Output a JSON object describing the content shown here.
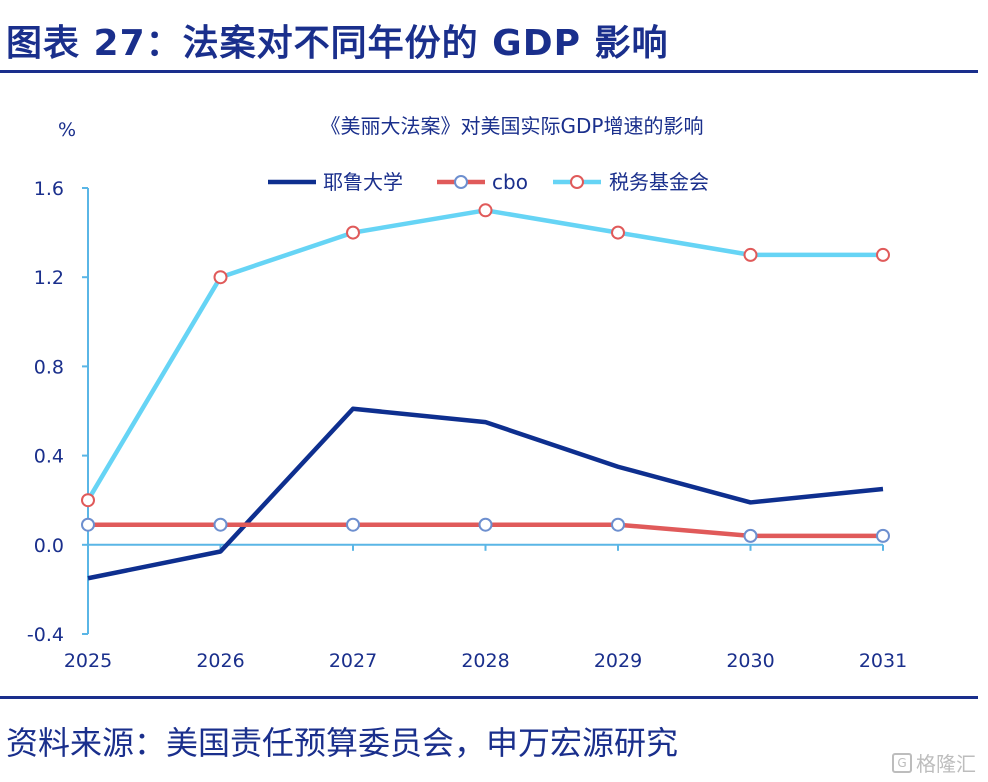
{
  "figure": {
    "title": "图表 27：法案对不同年份的 GDP 影响",
    "source": "资料来源：美国责任预算委员会，申万宏源研究",
    "watermark": "格隆汇",
    "watermark_icon": "G"
  },
  "colors": {
    "navy": "#1a2f8c",
    "yale": "#0e2f8f",
    "cbo": "#e05a5a",
    "tax_foundation": "#66d4f5",
    "axis": "#5ab6e6"
  },
  "chart_data": {
    "type": "line",
    "title": "《美丽大法案》对美国实际GDP增速的影响",
    "ylabel": "%",
    "xlabel": "",
    "categories": [
      "2025",
      "2026",
      "2027",
      "2028",
      "2029",
      "2030",
      "2031"
    ],
    "ylim": [
      -0.4,
      1.6
    ],
    "yticks": [
      1.6,
      1.2,
      0.8,
      0.4,
      0.0,
      -0.4
    ],
    "ytick_labels": [
      "1.6",
      "1.2",
      "0.8",
      "0.4",
      "0.0",
      "-0.4"
    ],
    "grid": false,
    "legend_position": "top",
    "series": [
      {
        "name": "耶鲁大学",
        "values": [
          -0.15,
          -0.03,
          0.61,
          0.55,
          0.35,
          0.19,
          0.25
        ],
        "markers": false
      },
      {
        "name": "cbo",
        "values": [
          0.09,
          0.09,
          0.09,
          0.09,
          0.09,
          0.04,
          0.04
        ],
        "markers": true
      },
      {
        "name": "税务基金会",
        "values": [
          0.2,
          1.2,
          1.4,
          1.5,
          1.4,
          1.3,
          1.3
        ],
        "markers": true
      }
    ]
  }
}
